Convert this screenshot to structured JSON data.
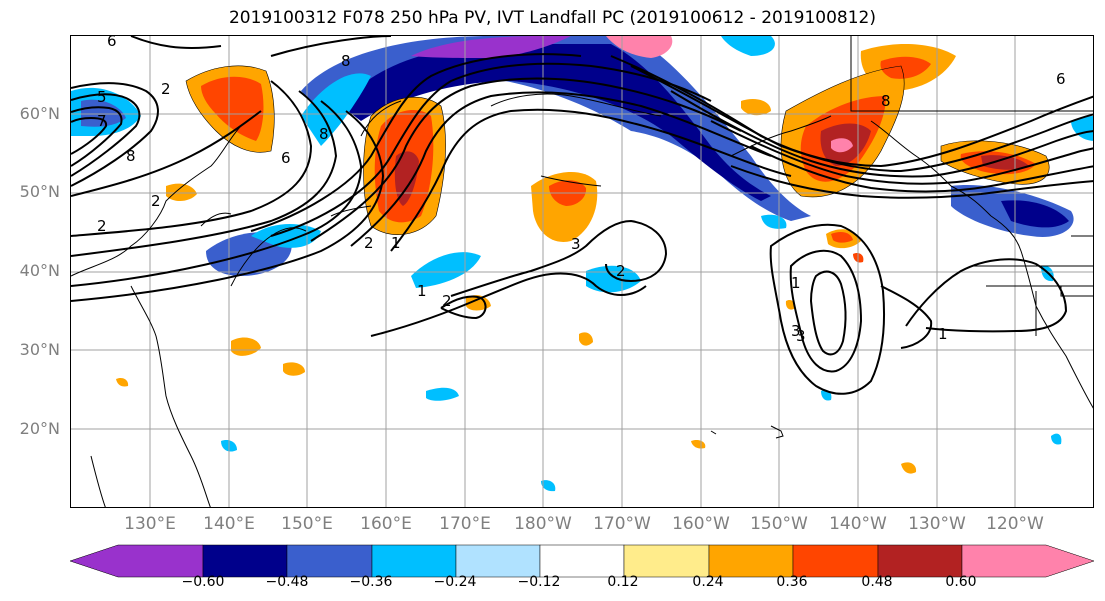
{
  "title": "2019100312 F078 250 hPa PV, IVT Landfall PC (2019100612 - 2019100812)",
  "lat_labels": [
    "60°N",
    "50°N",
    "40°N",
    "30°N",
    "20°N"
  ],
  "lon_labels": [
    "130°E",
    "140°E",
    "150°E",
    "160°E",
    "170°E",
    "180°W",
    "170°W",
    "160°W",
    "150°W",
    "140°W",
    "130°W",
    "120°W"
  ],
  "colorbar": {
    "colors": [
      "#9932cc",
      "#00008b",
      "#3a5fcd",
      "#00bfff",
      "#b0e2ff",
      "#ffffff",
      "#ffec8b",
      "#ffa500",
      "#ff4500",
      "#b22222",
      "#ff82ab"
    ],
    "tick_labels": [
      "−0.60",
      "−0.48",
      "−0.36",
      "−0.24",
      "−0.12",
      "0.12",
      "0.24",
      "0.36",
      "0.48",
      "0.60"
    ]
  },
  "contour_labels": [
    "6",
    "5",
    "7",
    "8",
    "2",
    "2",
    "2",
    "6",
    "8",
    "2",
    "1",
    "3",
    "2",
    "1",
    "2",
    "3",
    "1",
    "3",
    "1",
    "8",
    "6",
    "8"
  ]
}
